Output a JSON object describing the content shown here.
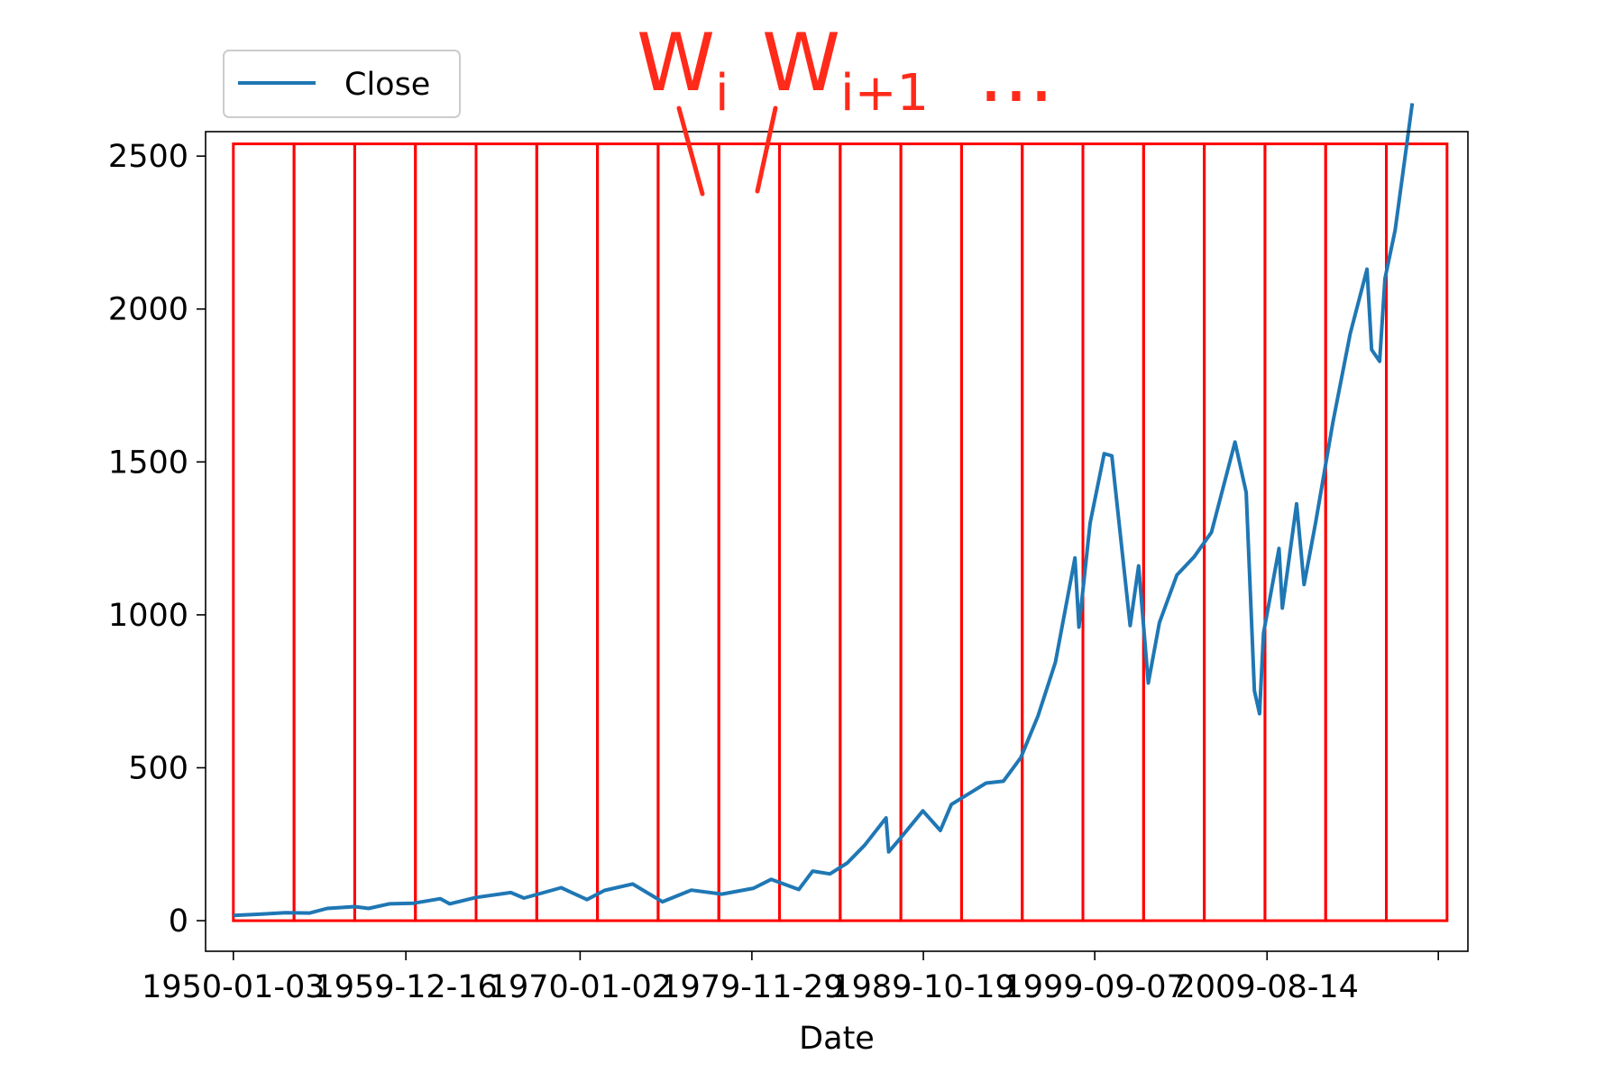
{
  "chart_data": {
    "type": "line",
    "xlabel": "Date",
    "ylabel": "",
    "x_axis_type": "date",
    "xlim": [
      "1948-05-28",
      "2021-03-15"
    ],
    "ylim": [
      -100,
      2580
    ],
    "grid": false,
    "legend_position": "top-left",
    "x_tick_labels": [
      "1950-01-03",
      "1959-12-16",
      "1970-01-02",
      "1979-11-29",
      "1989-10-19",
      "1999-09-07",
      "2009-08-14",
      ""
    ],
    "x_ticks": [
      "1950-01-03",
      "1959-12-16",
      "1970-01-02",
      "1979-11-29",
      "1989-10-19",
      "1999-09-07",
      "2009-08-14",
      "2019-07-01"
    ],
    "y_ticks": [
      0,
      500,
      1000,
      1500,
      2000,
      2500
    ],
    "y_tick_labels": [
      "0",
      "500",
      "1000",
      "1500",
      "2000",
      "2500"
    ],
    "series": [
      {
        "name": "Close",
        "color": "#1f77b4",
        "x": [
          "1950-01-03",
          "1951-06-01",
          "1953-01-02",
          "1954-06-01",
          "1955-06-01",
          "1957-01-02",
          "1957-10-21",
          "1959-01-02",
          "1960-06-01",
          "1961-12-11",
          "1962-06-26",
          "1964-01-02",
          "1966-01-03",
          "1966-10-07",
          "1968-11-29",
          "1970-05-26",
          "1971-06-01",
          "1973-01-11",
          "1974-10-03",
          "1976-06-01",
          "1978-03-06",
          "1980-01-02",
          "1981-01-06",
          "1982-08-12",
          "1983-06-01",
          "1984-06-01",
          "1985-06-01",
          "1986-06-01",
          "1987-08-25",
          "1987-10-19",
          "1988-06-01",
          "1989-10-09",
          "1990-10-11",
          "1991-06-01",
          "1992-06-01",
          "1993-06-01",
          "1994-06-01",
          "1995-06-01",
          "1996-06-01",
          "1997-06-01",
          "1998-07-17",
          "1998-10-08",
          "1999-06-01",
          "2000-03-24",
          "2000-09-01",
          "2001-09-21",
          "2002-03-19",
          "2002-10-09",
          "2003-06-01",
          "2004-06-01",
          "2005-06-01",
          "2006-06-01",
          "2007-10-09",
          "2008-06-01",
          "2008-11-20",
          "2009-03-09",
          "2009-06-01",
          "2010-04-23",
          "2010-07-02",
          "2011-04-29",
          "2011-10-03",
          "2012-06-01",
          "2013-06-01",
          "2014-06-01",
          "2015-05-21",
          "2015-08-25",
          "2016-02-11",
          "2016-06-01",
          "2017-01-03",
          "2017-06-01",
          "2017-12-29"
        ],
        "y": [
          17,
          21,
          26,
          25,
          40,
          46,
          40,
          55,
          57,
          72,
          55,
          76,
          92,
          74,
          108,
          69,
          99,
          120,
          62,
          100,
          87,
          106,
          135,
          102,
          162,
          153,
          189,
          247,
          336,
          225,
          266,
          359,
          295,
          380,
          415,
          450,
          456,
          533,
          670,
          845,
          1186,
          960,
          1300,
          1527,
          1520,
          965,
          1160,
          777,
          975,
          1130,
          1190,
          1270,
          1565,
          1400,
          752,
          677,
          940,
          1217,
          1022,
          1363,
          1099,
          1300,
          1630,
          1920,
          2130,
          1867,
          1829,
          2099,
          2258,
          2430,
          2673
        ]
      }
    ],
    "annotations": {
      "window_boxes": {
        "count": 20,
        "color": "#ff0000",
        "x_start": "1950-01-03",
        "x_end": "2019-12-31",
        "y_bottom": 0,
        "y_top": 2540
      },
      "labels": [
        {
          "base": "W",
          "sub": "i",
          "color": "#ff2a1a"
        },
        {
          "base": "W",
          "sub": "i+1",
          "color": "#ff2a1a"
        },
        {
          "text": "...",
          "color": "#ff2a1a"
        }
      ]
    }
  }
}
